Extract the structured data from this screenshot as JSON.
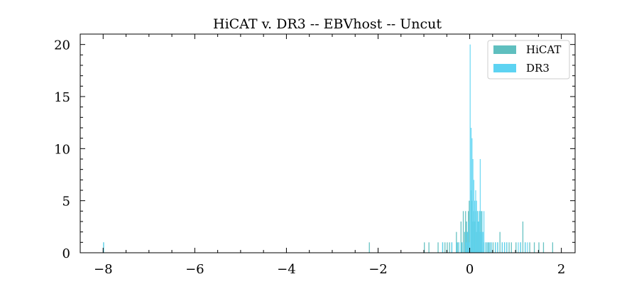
{
  "chart_data": {
    "type": "bar",
    "title": "HiCAT v. DR3 -- EBVhost -- Uncut",
    "xlabel": "",
    "ylabel": "",
    "xlim": [
      -8.5,
      2.3
    ],
    "ylim": [
      0,
      21
    ],
    "grid": false,
    "legend_position": "top-right",
    "x_ticks": [
      -8,
      -6,
      -4,
      -2,
      0,
      2
    ],
    "x_tick_labels": [
      "−8",
      "−6",
      "−4",
      "−2",
      "0",
      "2"
    ],
    "y_ticks": [
      0,
      5,
      10,
      15,
      20
    ],
    "y_tick_labels": [
      "0",
      "5",
      "10",
      "15",
      "20"
    ],
    "bin_width": 0.02,
    "series": [
      {
        "name": "HiCAT",
        "color": "#5fbfbf",
        "bins": [
          [
            -8.0,
            1
          ],
          [
            -2.2,
            1
          ],
          [
            -1.0,
            1
          ],
          [
            -0.9,
            1
          ],
          [
            -0.7,
            1
          ],
          [
            -0.6,
            1
          ],
          [
            -0.55,
            1
          ],
          [
            -0.5,
            1
          ],
          [
            -0.45,
            1
          ],
          [
            -0.4,
            1
          ],
          [
            -0.3,
            2
          ],
          [
            -0.28,
            1
          ],
          [
            -0.25,
            1
          ],
          [
            -0.2,
            3
          ],
          [
            -0.18,
            1
          ],
          [
            -0.15,
            4
          ],
          [
            -0.12,
            2
          ],
          [
            -0.1,
            4
          ],
          [
            -0.08,
            3
          ],
          [
            -0.06,
            2
          ],
          [
            -0.04,
            4
          ],
          [
            -0.02,
            5
          ],
          [
            0.02,
            6
          ],
          [
            0.04,
            5
          ],
          [
            0.06,
            3
          ],
          [
            0.08,
            4
          ],
          [
            0.1,
            3
          ],
          [
            0.12,
            4
          ],
          [
            0.14,
            2
          ],
          [
            0.16,
            4
          ],
          [
            0.18,
            3
          ],
          [
            0.2,
            4
          ],
          [
            0.22,
            2
          ],
          [
            0.24,
            4
          ],
          [
            0.26,
            2
          ],
          [
            0.3,
            1
          ],
          [
            0.35,
            1
          ],
          [
            0.4,
            1
          ],
          [
            0.45,
            1
          ],
          [
            0.5,
            1
          ],
          [
            0.55,
            1
          ],
          [
            0.6,
            1
          ],
          [
            0.65,
            2
          ],
          [
            0.7,
            1
          ],
          [
            0.75,
            1
          ],
          [
            0.8,
            1
          ],
          [
            0.85,
            1
          ],
          [
            0.9,
            1
          ],
          [
            1.0,
            1
          ],
          [
            1.1,
            1
          ],
          [
            1.15,
            3
          ],
          [
            1.2,
            1
          ],
          [
            1.3,
            1
          ],
          [
            1.4,
            1
          ],
          [
            1.5,
            1
          ],
          [
            1.6,
            1
          ],
          [
            1.8,
            1
          ]
        ]
      },
      {
        "name": "DR3",
        "color": "#5dd3f2",
        "bins": [
          [
            -8.0,
            1
          ],
          [
            -0.6,
            1
          ],
          [
            -0.4,
            1
          ],
          [
            -0.3,
            1
          ],
          [
            -0.25,
            1
          ],
          [
            -0.2,
            1
          ],
          [
            -0.15,
            1
          ],
          [
            -0.1,
            2
          ],
          [
            -0.08,
            1
          ],
          [
            -0.06,
            2
          ],
          [
            -0.04,
            3
          ],
          [
            -0.02,
            1
          ],
          [
            0.0,
            20
          ],
          [
            0.02,
            12
          ],
          [
            0.04,
            11
          ],
          [
            0.06,
            9
          ],
          [
            0.08,
            7
          ],
          [
            0.1,
            5
          ],
          [
            0.12,
            6
          ],
          [
            0.14,
            5
          ],
          [
            0.16,
            4
          ],
          [
            0.18,
            3
          ],
          [
            0.2,
            4
          ],
          [
            0.22,
            9
          ],
          [
            0.24,
            2
          ],
          [
            0.26,
            4
          ],
          [
            0.28,
            2
          ],
          [
            0.3,
            4
          ],
          [
            0.34,
            1
          ],
          [
            0.38,
            1
          ],
          [
            0.42,
            1
          ],
          [
            0.46,
            1
          ],
          [
            0.55,
            1
          ],
          [
            0.6,
            1
          ],
          [
            0.7,
            1
          ],
          [
            0.75,
            1
          ],
          [
            0.8,
            1
          ],
          [
            1.05,
            1
          ],
          [
            1.1,
            1
          ],
          [
            1.2,
            1
          ],
          [
            1.25,
            1
          ]
        ]
      }
    ]
  }
}
